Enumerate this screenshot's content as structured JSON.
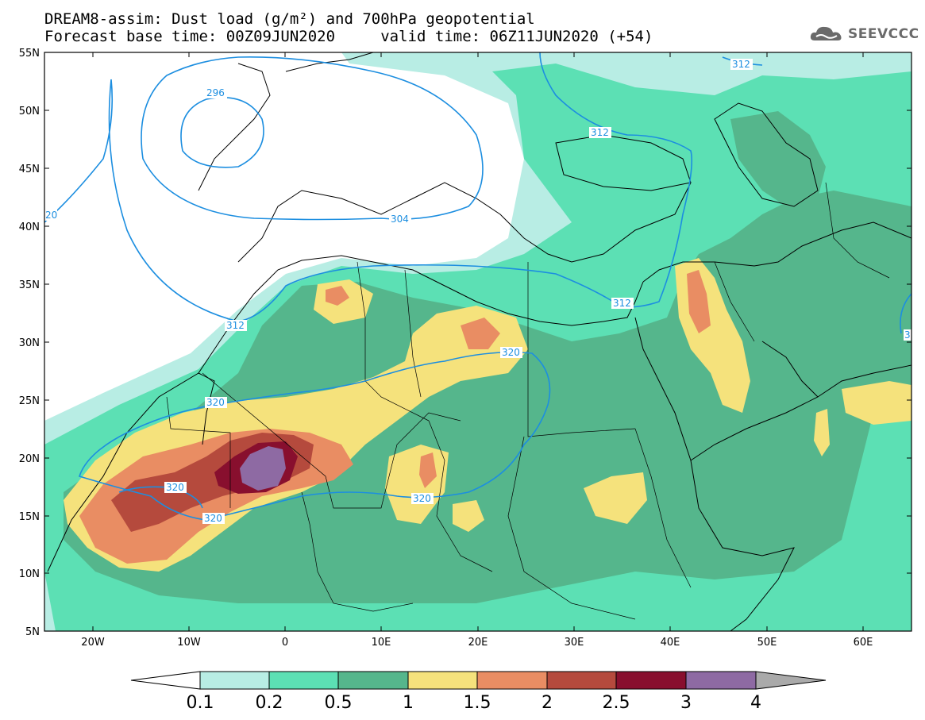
{
  "title": {
    "line1": "DREAM8-assim: Dust load (g/m²) and 700hPa geopotential",
    "line2": "Forecast base time: 00Z09JUN2020     valid time: 06Z11JUN2020 (+54)"
  },
  "logo": {
    "text": "SEEVCCC",
    "icon": "cloud-icon"
  },
  "map": {
    "lon_range": [
      -25,
      65
    ],
    "lat_range": [
      5,
      55
    ],
    "lat_ticks": [
      "55N",
      "50N",
      "45N",
      "40N",
      "35N",
      "30N",
      "25N",
      "20N",
      "15N",
      "10N",
      "5N"
    ],
    "lon_ticks": [
      "20W",
      "10W",
      "0",
      "10E",
      "20E",
      "30E",
      "40E",
      "50E",
      "60E"
    ],
    "contour_labels": [
      "296",
      "304",
      "312",
      "312",
      "312",
      "312",
      "320",
      "320",
      "320",
      "320",
      "320",
      "20",
      "3"
    ]
  },
  "colorbar": {
    "labels": [
      "0.1",
      "0.2",
      "0.5",
      "1",
      "1.5",
      "2",
      "2.5",
      "3",
      "4"
    ],
    "colors": [
      "#ffffff",
      "#b8ede4",
      "#5ce0b4",
      "#55b68c",
      "#f5e27c",
      "#e98d63",
      "#b54a3d",
      "#880f2e",
      "#8e6aa3",
      "#aaaaaa"
    ]
  }
}
